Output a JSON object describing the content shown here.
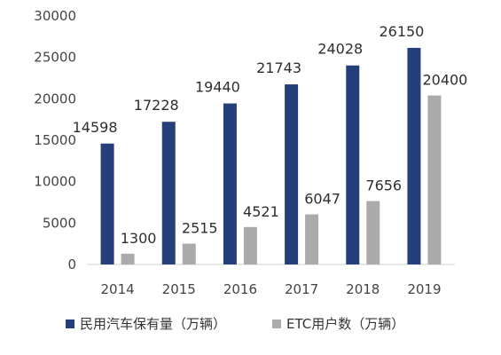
{
  "chart_data": {
    "type": "bar",
    "categories": [
      "2014",
      "2015",
      "2016",
      "2017",
      "2018",
      "2019"
    ],
    "series": [
      {
        "name": "民用汽车保有量（万辆）",
        "color": "#243f7a",
        "values": [
          14598,
          17228,
          19440,
          21743,
          24028,
          26150
        ]
      },
      {
        "name": "ETC用户数（万辆）",
        "color": "#ababab",
        "values": [
          1300,
          2515,
          4521,
          6047,
          7656,
          20400
        ]
      }
    ],
    "yticks": [
      "0",
      "5000",
      "10000",
      "15000",
      "20000",
      "25000",
      "30000"
    ],
    "ylim": [
      0,
      30000
    ],
    "grid": false,
    "legend_position": "bottom"
  }
}
